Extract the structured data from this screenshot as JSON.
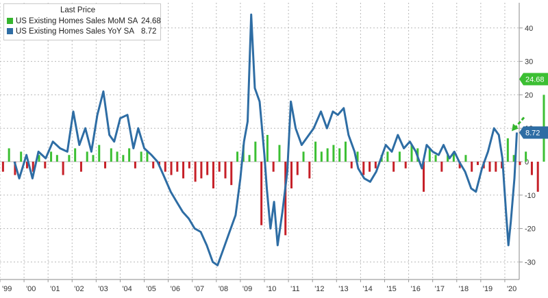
{
  "legend": {
    "title": "Last Price",
    "items": [
      {
        "label": "US Existing Homes Sales MoM SA",
        "value": "24.68",
        "color": "#35b52d"
      },
      {
        "label": "US Existing Homes Sales YoY SA",
        "value": "8.72",
        "color": "#2e6da4"
      }
    ]
  },
  "colors": {
    "mom_positive": "#3cbf33",
    "mom_negative": "#c62028",
    "yoy_line": "#2e6da4",
    "grid": "#b8b8b8",
    "axis_text": "#333333",
    "arrow": "#35b52d"
  },
  "chart_data": {
    "type": "bar+line",
    "x_tick_labels": [
      "'99",
      "'00",
      "'01",
      "'02",
      "'03",
      "'04",
      "'05",
      "'06",
      "'07",
      "'08",
      "'09",
      "'10",
      "'11",
      "'12",
      "'13",
      "'14",
      "'15",
      "'16",
      "'17",
      "'18",
      "'19",
      "'20"
    ],
    "x_range": [
      1999.0,
      2020.6
    ],
    "y_ticks": [
      -30,
      -20,
      -10,
      0,
      10,
      20,
      30,
      40
    ],
    "ylim": [
      -32,
      48
    ],
    "grid": true,
    "legend_position": "top-left",
    "last_value_tags": [
      {
        "series": "US Existing Homes Sales MoM SA",
        "value": 24.68,
        "label": "24.68"
      },
      {
        "series": "US Existing Homes Sales YoY SA",
        "value": 8.72,
        "label": "8.72"
      }
    ],
    "series": [
      {
        "name": "US Existing Homes Sales MoM SA",
        "kind": "bar",
        "start": 1999.0,
        "step": 0.25,
        "values": [
          -3,
          4,
          -4,
          3,
          -2,
          -3,
          2,
          -2,
          3,
          2,
          -4,
          2,
          4,
          -3,
          3,
          2,
          5,
          -2,
          4,
          3,
          2,
          4,
          -2,
          3,
          3,
          -2,
          -1,
          -3,
          -4,
          -3,
          -5,
          -2,
          -6,
          -5,
          -4,
          -8,
          -3,
          -5,
          -7,
          3,
          5,
          2,
          6,
          -19,
          8,
          -3,
          5,
          -22,
          -8,
          -4,
          3,
          -5,
          6,
          3,
          4,
          5,
          4,
          6,
          -2,
          3,
          -4,
          -3,
          -2,
          2,
          3,
          -3,
          3,
          -2,
          5,
          4,
          -9,
          4,
          2,
          -3,
          2,
          3,
          -2,
          2,
          -3,
          -1,
          -2,
          -3,
          -3,
          -2,
          7,
          2,
          -1,
          3,
          -4,
          -9,
          20,
          24.68
        ]
      },
      {
        "name": "US Existing Homes Sales YoY SA",
        "kind": "line",
        "points": [
          [
            1999.6,
            0
          ],
          [
            1999.8,
            -5
          ],
          [
            2000.1,
            2
          ],
          [
            2000.35,
            -5
          ],
          [
            2000.6,
            3
          ],
          [
            2000.9,
            1
          ],
          [
            2001.2,
            6
          ],
          [
            2001.5,
            4
          ],
          [
            2001.8,
            3
          ],
          [
            2002.05,
            15
          ],
          [
            2002.3,
            5
          ],
          [
            2002.55,
            10
          ],
          [
            2002.8,
            3
          ],
          [
            2003.05,
            14
          ],
          [
            2003.3,
            21
          ],
          [
            2003.55,
            8
          ],
          [
            2003.75,
            6
          ],
          [
            2004.0,
            13
          ],
          [
            2004.3,
            14
          ],
          [
            2004.55,
            4
          ],
          [
            2004.75,
            10
          ],
          [
            2005.0,
            4
          ],
          [
            2005.3,
            2
          ],
          [
            2005.55,
            0
          ],
          [
            2005.8,
            -4
          ],
          [
            2006.1,
            -9
          ],
          [
            2006.35,
            -12
          ],
          [
            2006.6,
            -15
          ],
          [
            2006.85,
            -17
          ],
          [
            2007.1,
            -20
          ],
          [
            2007.35,
            -21
          ],
          [
            2007.6,
            -25
          ],
          [
            2007.85,
            -30
          ],
          [
            2008.05,
            -31
          ],
          [
            2008.3,
            -26
          ],
          [
            2008.55,
            -21
          ],
          [
            2008.8,
            -16
          ],
          [
            2009.0,
            -5
          ],
          [
            2009.15,
            6
          ],
          [
            2009.3,
            12
          ],
          [
            2009.45,
            44
          ],
          [
            2009.6,
            22
          ],
          [
            2009.8,
            18
          ],
          [
            2010.0,
            2
          ],
          [
            2010.1,
            -8
          ],
          [
            2010.25,
            -20
          ],
          [
            2010.4,
            -12
          ],
          [
            2010.55,
            -25
          ],
          [
            2010.75,
            -15
          ],
          [
            2010.95,
            -3
          ],
          [
            2011.1,
            18
          ],
          [
            2011.3,
            10
          ],
          [
            2011.55,
            5
          ],
          [
            2011.85,
            8
          ],
          [
            2012.05,
            10
          ],
          [
            2012.35,
            15
          ],
          [
            2012.6,
            10
          ],
          [
            2012.85,
            15
          ],
          [
            2013.05,
            14
          ],
          [
            2013.3,
            16
          ],
          [
            2013.5,
            8
          ],
          [
            2013.75,
            3
          ],
          [
            2013.9,
            -2
          ],
          [
            2014.15,
            -5
          ],
          [
            2014.4,
            -6
          ],
          [
            2014.65,
            -3
          ],
          [
            2014.85,
            1
          ],
          [
            2015.05,
            5
          ],
          [
            2015.3,
            3
          ],
          [
            2015.55,
            8
          ],
          [
            2015.8,
            4
          ],
          [
            2016.05,
            6
          ],
          [
            2016.3,
            3
          ],
          [
            2016.55,
            -2
          ],
          [
            2016.75,
            5
          ],
          [
            2017.0,
            3
          ],
          [
            2017.25,
            2
          ],
          [
            2017.45,
            5
          ],
          [
            2017.7,
            1
          ],
          [
            2017.9,
            3
          ],
          [
            2018.1,
            0
          ],
          [
            2018.35,
            -3
          ],
          [
            2018.6,
            -8
          ],
          [
            2018.8,
            -9
          ],
          [
            2019.05,
            -2
          ],
          [
            2019.3,
            3
          ],
          [
            2019.55,
            10
          ],
          [
            2019.75,
            8
          ],
          [
            2019.9,
            1
          ],
          [
            2020.05,
            -15
          ],
          [
            2020.15,
            -25
          ],
          [
            2020.25,
            -18
          ],
          [
            2020.4,
            -5
          ],
          [
            2020.5,
            8.72
          ]
        ]
      }
    ]
  }
}
